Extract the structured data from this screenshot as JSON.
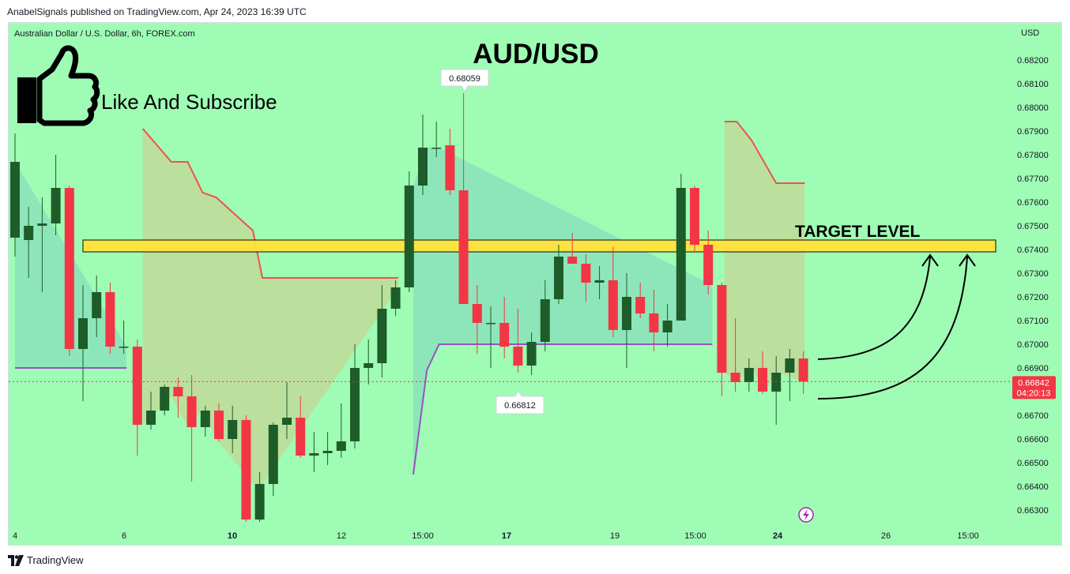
{
  "header": {
    "publisher": "AnabelSignals published on TradingView.com, Apr 24, 2023 16:39 UTC"
  },
  "chart_header": {
    "symbol": "Australian Dollar / U.S. Dollar, 6h, FOREX.com",
    "currency": "USD"
  },
  "annotations": {
    "title": "AUD/USD",
    "subscribe": "Like And Subscribe",
    "target": "TARGET LEVEL",
    "high_label": "0.68059",
    "low_label": "0.66812"
  },
  "price_tag": {
    "price": "0.66842",
    "countdown": "04:20:13",
    "color": "#f23645"
  },
  "footer": {
    "brand": "TradingView"
  },
  "colors": {
    "background": "#9ffcb4",
    "bull": "#1e5c2a",
    "bear": "#f23645",
    "supertrend_up": "#9c4fc4",
    "supertrend_down": "#f0514f",
    "target_zone": "#ffe33c"
  },
  "chart_data": {
    "type": "candlestick",
    "title": "AUD/USD",
    "ylim": [
      0.6625,
      0.683
    ],
    "y_ticks": [
      "0.68200",
      "0.68100",
      "0.68000",
      "0.67900",
      "0.67800",
      "0.67700",
      "0.67600",
      "0.67500",
      "0.67400",
      "0.67300",
      "0.67200",
      "0.67100",
      "0.67000",
      "0.66900",
      "0.66700",
      "0.66600",
      "0.66500",
      "0.66400",
      "0.66300"
    ],
    "x_ticks": [
      "4",
      "6",
      "10",
      "12",
      "15:00",
      "17",
      "19",
      "15:00",
      "24",
      "26",
      "15:00"
    ],
    "bold_x_ticks": [
      "10",
      "17",
      "24"
    ],
    "target_zone": [
      0.6739,
      0.6744
    ],
    "current_price": 0.66842,
    "candles": [
      {
        "o": 0.6745,
        "h": 0.6789,
        "l": 0.6737,
        "c": 0.6777
      },
      {
        "o": 0.6744,
        "h": 0.6758,
        "l": 0.6728,
        "c": 0.675
      },
      {
        "o": 0.675,
        "h": 0.6762,
        "l": 0.6722,
        "c": 0.6751
      },
      {
        "o": 0.6751,
        "h": 0.678,
        "l": 0.6746,
        "c": 0.6766
      },
      {
        "o": 0.6766,
        "h": 0.6767,
        "l": 0.6695,
        "c": 0.6698
      },
      {
        "o": 0.6698,
        "h": 0.6725,
        "l": 0.6676,
        "c": 0.6711
      },
      {
        "o": 0.6711,
        "h": 0.6729,
        "l": 0.6703,
        "c": 0.6722
      },
      {
        "o": 0.6722,
        "h": 0.6726,
        "l": 0.6696,
        "c": 0.6699
      },
      {
        "o": 0.6699,
        "h": 0.671,
        "l": 0.6696,
        "c": 0.6699
      },
      {
        "o": 0.6699,
        "h": 0.6702,
        "l": 0.6653,
        "c": 0.6666
      },
      {
        "o": 0.6666,
        "h": 0.668,
        "l": 0.6664,
        "c": 0.6672
      },
      {
        "o": 0.6672,
        "h": 0.6683,
        "l": 0.667,
        "c": 0.6682
      },
      {
        "o": 0.6682,
        "h": 0.6686,
        "l": 0.6669,
        "c": 0.6678
      },
      {
        "o": 0.6678,
        "h": 0.6687,
        "l": 0.6642,
        "c": 0.6665
      },
      {
        "o": 0.6665,
        "h": 0.6674,
        "l": 0.6661,
        "c": 0.6672
      },
      {
        "o": 0.6672,
        "h": 0.6675,
        "l": 0.6659,
        "c": 0.666
      },
      {
        "o": 0.666,
        "h": 0.6674,
        "l": 0.6654,
        "c": 0.6668
      },
      {
        "o": 0.6668,
        "h": 0.667,
        "l": 0.6625,
        "c": 0.6626
      },
      {
        "o": 0.6626,
        "h": 0.6646,
        "l": 0.6625,
        "c": 0.6641
      },
      {
        "o": 0.6641,
        "h": 0.6667,
        "l": 0.6636,
        "c": 0.6666
      },
      {
        "o": 0.6666,
        "h": 0.6684,
        "l": 0.666,
        "c": 0.6669
      },
      {
        "o": 0.6669,
        "h": 0.6678,
        "l": 0.6652,
        "c": 0.6653
      },
      {
        "o": 0.6653,
        "h": 0.6663,
        "l": 0.6646,
        "c": 0.6654
      },
      {
        "o": 0.6654,
        "h": 0.6663,
        "l": 0.6649,
        "c": 0.6655
      },
      {
        "o": 0.6655,
        "h": 0.6675,
        "l": 0.6652,
        "c": 0.6659
      },
      {
        "o": 0.6659,
        "h": 0.67,
        "l": 0.6656,
        "c": 0.669
      },
      {
        "o": 0.669,
        "h": 0.6702,
        "l": 0.6683,
        "c": 0.6692
      },
      {
        "o": 0.6692,
        "h": 0.6725,
        "l": 0.6686,
        "c": 0.6715
      },
      {
        "o": 0.6715,
        "h": 0.6727,
        "l": 0.6712,
        "c": 0.6724
      },
      {
        "o": 0.6724,
        "h": 0.6773,
        "l": 0.6722,
        "c": 0.6767
      },
      {
        "o": 0.6767,
        "h": 0.6797,
        "l": 0.6763,
        "c": 0.6783
      },
      {
        "o": 0.6783,
        "h": 0.6794,
        "l": 0.6779,
        "c": 0.6783
      },
      {
        "o": 0.6784,
        "h": 0.6791,
        "l": 0.6763,
        "c": 0.6765
      },
      {
        "o": 0.6765,
        "h": 0.6806,
        "l": 0.6717,
        "c": 0.6717
      },
      {
        "o": 0.6717,
        "h": 0.6725,
        "l": 0.6696,
        "c": 0.6709
      },
      {
        "o": 0.6709,
        "h": 0.6716,
        "l": 0.669,
        "c": 0.6709
      },
      {
        "o": 0.6709,
        "h": 0.672,
        "l": 0.6694,
        "c": 0.6699
      },
      {
        "o": 0.6699,
        "h": 0.6715,
        "l": 0.6688,
        "c": 0.6691
      },
      {
        "o": 0.6691,
        "h": 0.6705,
        "l": 0.6687,
        "c": 0.6701
      },
      {
        "o": 0.6701,
        "h": 0.6727,
        "l": 0.6697,
        "c": 0.6719
      },
      {
        "o": 0.6719,
        "h": 0.6742,
        "l": 0.6717,
        "c": 0.6737
      },
      {
        "o": 0.6737,
        "h": 0.6747,
        "l": 0.6734,
        "c": 0.6734
      },
      {
        "o": 0.6734,
        "h": 0.6738,
        "l": 0.6718,
        "c": 0.6726
      },
      {
        "o": 0.6726,
        "h": 0.6733,
        "l": 0.6719,
        "c": 0.6727
      },
      {
        "o": 0.6727,
        "h": 0.6741,
        "l": 0.6703,
        "c": 0.6706
      },
      {
        "o": 0.6706,
        "h": 0.673,
        "l": 0.669,
        "c": 0.672
      },
      {
        "o": 0.672,
        "h": 0.6726,
        "l": 0.6711,
        "c": 0.6713
      },
      {
        "o": 0.6713,
        "h": 0.6723,
        "l": 0.6697,
        "c": 0.6705
      },
      {
        "o": 0.6705,
        "h": 0.6717,
        "l": 0.6699,
        "c": 0.671
      },
      {
        "o": 0.671,
        "h": 0.6772,
        "l": 0.671,
        "c": 0.6766
      },
      {
        "o": 0.6766,
        "h": 0.6767,
        "l": 0.6739,
        "c": 0.6742
      },
      {
        "o": 0.6742,
        "h": 0.6748,
        "l": 0.6721,
        "c": 0.6725
      },
      {
        "o": 0.6725,
        "h": 0.6726,
        "l": 0.6678,
        "c": 0.6688
      },
      {
        "o": 0.6688,
        "h": 0.6711,
        "l": 0.668,
        "c": 0.6684
      },
      {
        "o": 0.6684,
        "h": 0.6694,
        "l": 0.668,
        "c": 0.669
      },
      {
        "o": 0.669,
        "h": 0.6697,
        "l": 0.6679,
        "c": 0.668
      },
      {
        "o": 0.668,
        "h": 0.6695,
        "l": 0.6666,
        "c": 0.6688
      },
      {
        "o": 0.6688,
        "h": 0.6698,
        "l": 0.6676,
        "c": 0.6694
      },
      {
        "o": 0.6694,
        "h": 0.6697,
        "l": 0.6679,
        "c": 0.66842
      }
    ]
  }
}
